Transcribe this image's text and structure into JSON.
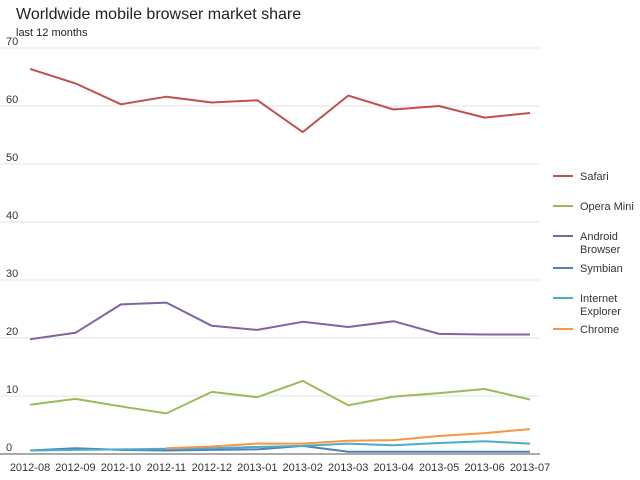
{
  "chart_data": {
    "type": "line",
    "title": "Worldwide mobile browser market share",
    "subtitle": "last 12 months",
    "xlabel": "",
    "ylabel": "",
    "ylim": [
      0,
      70
    ],
    "yticks": [
      0,
      10,
      20,
      30,
      40,
      50,
      60,
      70
    ],
    "grid": true,
    "legend_position": "right",
    "categories": [
      "2012-08",
      "2012-09",
      "2012-10",
      "2012-11",
      "2012-12",
      "2013-01",
      "2013-02",
      "2013-03",
      "2013-04",
      "2013-05",
      "2013-06",
      "2013-07"
    ],
    "series": [
      {
        "name": "Safari",
        "color": "#c0504d",
        "values": [
          66.4,
          63.9,
          60.3,
          61.6,
          60.6,
          61.0,
          55.5,
          61.8,
          59.4,
          60.0,
          58.0,
          58.8
        ]
      },
      {
        "name": "Opera Mini",
        "color": "#9bbb59",
        "values": [
          8.5,
          9.5,
          8.2,
          7.0,
          10.7,
          9.8,
          12.6,
          8.4,
          9.9,
          10.5,
          11.2,
          9.4
        ]
      },
      {
        "name": "Android Browser",
        "label_lines": [
          "Android",
          "Browser"
        ],
        "color": "#8064a2",
        "values": [
          19.8,
          20.9,
          25.8,
          26.1,
          22.1,
          21.4,
          22.8,
          21.9,
          22.9,
          20.7,
          20.6,
          20.6
        ]
      },
      {
        "name": "Symbian",
        "color": "#4f81bd",
        "values": [
          0.6,
          1.0,
          0.7,
          0.6,
          0.7,
          0.8,
          1.4,
          0.4,
          0.4,
          0.4,
          0.4,
          0.4
        ]
      },
      {
        "name": "Internet Explorer",
        "label_lines": [
          "Internet",
          "Explorer"
        ],
        "color": "#4bacc6",
        "values": [
          0.6,
          0.7,
          0.8,
          0.9,
          1.0,
          1.2,
          1.4,
          1.8,
          1.5,
          1.9,
          2.2,
          1.8
        ]
      },
      {
        "name": "Chrome",
        "color": "#f79646",
        "values": [
          null,
          null,
          null,
          1.0,
          1.3,
          1.8,
          1.8,
          2.3,
          2.4,
          3.1,
          3.6,
          4.3
        ]
      }
    ]
  }
}
